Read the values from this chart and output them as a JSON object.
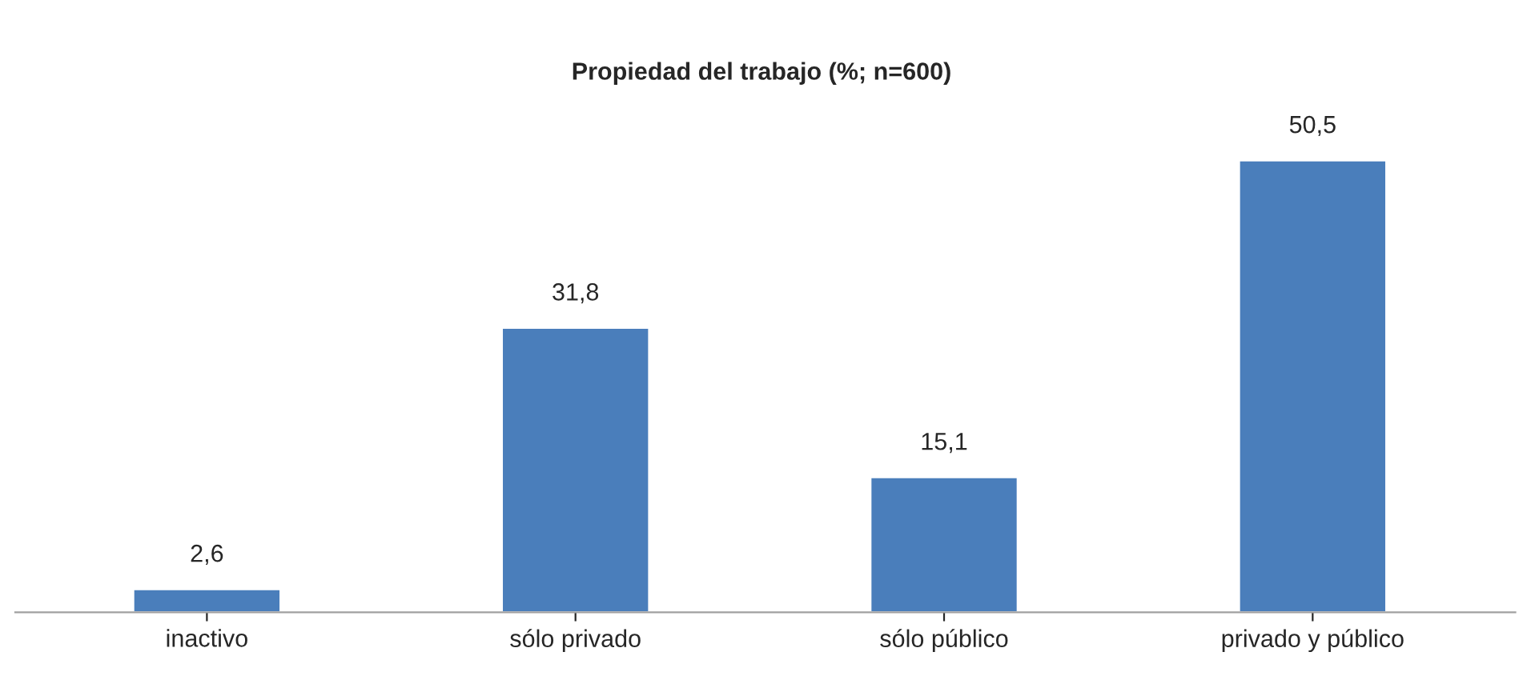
{
  "chart_data": {
    "type": "bar",
    "title": "Propiedad del trabajo (%; n=600)",
    "categories": [
      "inactivo",
      "sólo privado",
      "sólo público",
      "privado y público"
    ],
    "values": [
      2.6,
      31.8,
      15.1,
      50.5
    ],
    "value_labels": [
      "2,6",
      "31,8",
      "15,1",
      "50,5"
    ],
    "color": "#4a7ebb",
    "grid": false,
    "legend": false
  }
}
